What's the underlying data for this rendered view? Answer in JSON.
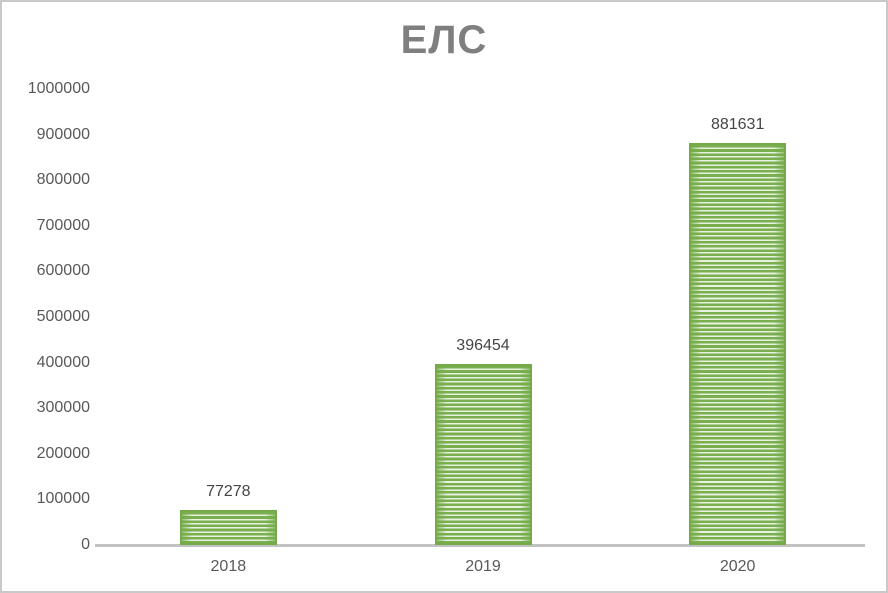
{
  "chart_data": {
    "type": "bar",
    "title": "ЕЛС",
    "categories": [
      "2018",
      "2019",
      "2020"
    ],
    "values": [
      77278,
      396454,
      881631
    ],
    "data_labels": [
      "77278",
      "396454",
      "881631"
    ],
    "y_ticks": [
      0,
      100000,
      200000,
      300000,
      400000,
      500000,
      600000,
      700000,
      800000,
      900000,
      1000000
    ],
    "ylim": [
      0,
      1000000
    ],
    "xlabel": "",
    "ylabel": "",
    "grid": false,
    "legend": false,
    "colors": {
      "bar_green": "#79af4f",
      "bar_stripe_light": "#e9f2df",
      "bar_border": "#74aa49",
      "bar_edge_fade": "rgba(118,172,76,0.75)",
      "axis_line": "#c2c2c2",
      "title_text": "#7f7f7f",
      "tick_text": "#595959",
      "data_label_text": "#454545",
      "frame_border": "#c9c9c9"
    }
  }
}
